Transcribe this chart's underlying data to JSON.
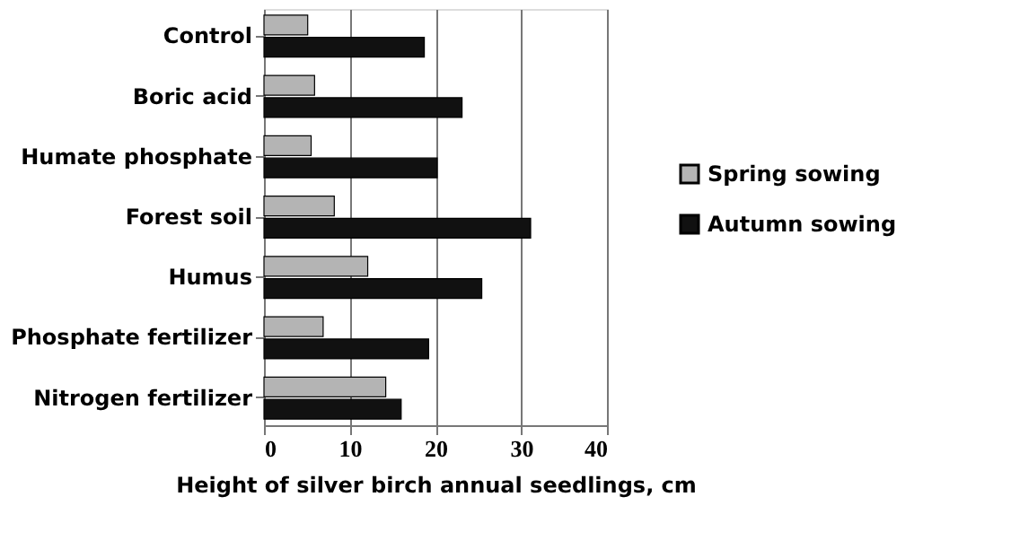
{
  "chart_data": {
    "type": "bar",
    "orientation": "horizontal",
    "xlabel": "Height of silver birch annual seedlings, cm",
    "categories": [
      "Control",
      "Boric acid",
      "Humate phosphate",
      "Forest soil",
      "Humus",
      "Phosphate fertilizer",
      "Nitrogen fertilizer"
    ],
    "series": [
      {
        "name": "Spring sowing",
        "color": "#b4b4b4",
        "values": [
          5.1,
          5.9,
          5.5,
          8.2,
          12.1,
          6.9,
          14.2
        ]
      },
      {
        "name": "Autumn sowing",
        "color": "#111111",
        "values": [
          18.7,
          23.1,
          20.2,
          31.1,
          25.4,
          19.2,
          16.0
        ]
      }
    ],
    "xlim": [
      0,
      40
    ],
    "xticks": [
      0,
      10,
      20,
      30,
      40
    ],
    "grid": "x",
    "legend": "right"
  }
}
